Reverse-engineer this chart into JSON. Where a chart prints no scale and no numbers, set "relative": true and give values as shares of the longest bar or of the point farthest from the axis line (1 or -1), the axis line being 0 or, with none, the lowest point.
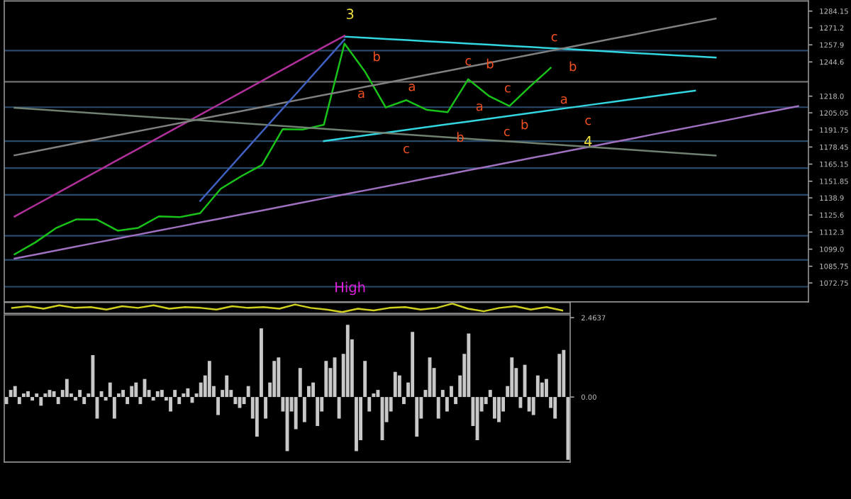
{
  "chart_data": [
    {
      "type": "line",
      "ylim": [
        1058,
        1292
      ],
      "yticks": [
        1284.15,
        1271.2,
        1257.9,
        1244.6,
        {
          "value": 1218,
          "label": "1218.0"
        },
        1205.05,
        1191.75,
        1178.45,
        1165.15,
        1151.85,
        1138.9,
        1125.6,
        1112.3,
        {
          "value": 1099,
          "label": "1099.0"
        },
        1085.75,
        1072.75
      ],
      "tick_labels": "y",
      "categories": [
        null,
        null,
        null,
        null,
        null,
        null,
        null,
        null,
        null,
        null,
        null,
        null,
        null,
        null,
        null,
        null,
        null,
        null,
        null,
        null,
        null,
        null,
        null,
        null,
        null,
        null,
        null,
        null,
        null,
        null,
        null,
        null,
        null,
        null,
        null,
        null,
        null,
        null,
        null
      ],
      "series": [
        {
          "color": "#19c219",
          "values": [
            1095.0,
            1104.2,
            1115.3,
            1122.2,
            1122.0,
            1113.4,
            1115.6,
            1124.5,
            1123.9,
            1127.0,
            1146.0,
            1155.8,
            1164.6,
            1192.3,
            1192.1,
            1195.8,
            1258.9,
            1236.9,
            1209.2,
            1214.9,
            1207.3,
            1205.5,
            1231.1,
            1218.2,
            1210.3,
            1225.6,
            1240.0,
            null,
            null,
            null,
            null,
            null,
            null,
            null,
            null,
            null,
            null,
            null,
            null
          ]
        },
        {
          "type": "line",
          "color": "#33d6e0",
          "values": [
            null,
            null,
            null,
            null,
            null,
            null,
            null,
            null,
            null,
            null,
            null,
            null,
            null,
            null,
            null,
            null,
            1264.3,
            1263.4,
            1262.5,
            1261.6,
            1260.7,
            1259.8,
            1258.9,
            1258.0,
            1257.1,
            1256.2,
            1255.3,
            1254.4,
            1253.5,
            1252.6,
            1251.6,
            1250.7,
            1249.8,
            1248.9,
            1248.0,
            null,
            null,
            null,
            null
          ]
        },
        {
          "type": "line",
          "color": "#33d6e0",
          "values": [
            null,
            null,
            null,
            null,
            null,
            null,
            null,
            null,
            null,
            null,
            null,
            null,
            null,
            null,
            null,
            1183.1,
            1185.3,
            1187.5,
            1189.6,
            1191.8,
            1194.0,
            1196.2,
            1198.3,
            1200.5,
            1202.7,
            1204.9,
            1207.1,
            1209.2,
            1211.4,
            1213.6,
            1215.8,
            1217.9,
            1220.1,
            1222.3,
            null,
            null,
            null,
            null,
            null
          ]
        },
        {
          "type": "line",
          "color": "#b0309a",
          "values": [
            1124.4,
            1133.2,
            1142.0,
            1150.8,
            1159.6,
            1168.4,
            1177.1,
            1185.9,
            1194.7,
            1203.5,
            1212.3,
            1221.1,
            1229.9,
            1238.7,
            1247.5,
            1256.3,
            1265.0,
            null,
            null,
            null,
            null,
            null,
            null,
            null,
            null,
            null,
            null,
            null,
            null,
            null,
            null,
            null,
            null,
            null,
            null,
            null,
            null,
            null,
            null
          ]
        },
        {
          "type": "line",
          "color": "#a070c0",
          "values": [
            1091.7,
            1094.8,
            1097.9,
            1101.1,
            1104.2,
            1107.3,
            1110.4,
            1113.5,
            1116.6,
            1119.8,
            1122.9,
            1126.0,
            1129.1,
            1132.2,
            1135.4,
            1138.5,
            1141.6,
            1144.7,
            1147.8,
            1150.9,
            1154.1,
            1157.2,
            1160.3,
            1163.4,
            1166.5,
            1169.7,
            1172.8,
            1175.9,
            1179.0,
            1182.1,
            1185.2,
            1188.4,
            1191.5,
            1194.6,
            1197.7,
            1200.8,
            1204.0,
            1207.1,
            1210.2
          ]
        },
        {
          "type": "line",
          "color": "#808080",
          "values": [
            1172.0,
            1175.1,
            1178.3,
            1181.4,
            1184.5,
            1187.6,
            1190.8,
            1193.9,
            1197.0,
            1200.2,
            1203.3,
            1206.4,
            1209.5,
            1212.7,
            1215.8,
            1218.9,
            1222.0,
            1225.2,
            1228.3,
            1231.4,
            1234.6,
            1237.7,
            1240.8,
            1243.9,
            1247.1,
            1250.2,
            1253.3,
            1256.4,
            1259.6,
            1262.7,
            1265.8,
            1269.0,
            1272.1,
            1275.2,
            1278.3,
            null,
            null,
            null,
            null
          ]
        },
        {
          "type": "line",
          "color": "#708070",
          "values": [
            1209.0,
            1207.9,
            1206.8,
            1205.7,
            1204.6,
            1203.5,
            1202.4,
            1201.3,
            1200.3,
            1199.2,
            1198.1,
            1197.0,
            1195.9,
            1194.8,
            1193.7,
            1192.6,
            1191.5,
            1190.4,
            1189.3,
            1188.2,
            1187.1,
            1186.0,
            1184.9,
            1183.8,
            1182.8,
            1181.7,
            1180.6,
            1179.5,
            1178.4,
            1177.3,
            1176.2,
            1175.1,
            1174.0,
            1172.9,
            1171.8,
            null,
            null,
            null,
            null
          ]
        },
        {
          "type": "line",
          "color": "#4060c0",
          "values": [
            null,
            null,
            null,
            null,
            null,
            null,
            null,
            null,
            null,
            1136.5,
            1154.4,
            1172.4,
            1190.3,
            1208.2,
            1226.1,
            1244.1,
            1262.0,
            null,
            null,
            null,
            null,
            null,
            null,
            null,
            null,
            null,
            null,
            null,
            null,
            null,
            null,
            null,
            null,
            null,
            null,
            null,
            null,
            null,
            null
          ]
        }
      ],
      "ref_lines": [
        {
          "axis": "y",
          "value": 1253.4,
          "color": "#2a4a6a"
        },
        {
          "axis": "y",
          "value": 1229.2,
          "color": "#707070"
        },
        {
          "axis": "y",
          "value": 1209.4,
          "color": "#2a4a6a"
        },
        {
          "axis": "y",
          "value": 1183.0,
          "color": "#2a4a6a"
        },
        {
          "axis": "y",
          "value": 1162.1,
          "color": "#2a4a6a"
        },
        {
          "axis": "y",
          "value": 1141.3,
          "color": "#2a4a6a"
        },
        {
          "axis": "y",
          "value": 1109.4,
          "color": "#2a4a6a"
        },
        {
          "axis": "y",
          "value": 1090.7,
          "color": "#2a4a6a"
        },
        {
          "axis": "y",
          "value": 1069.8,
          "color": "#2a4a6a"
        }
      ],
      "annotations": [
        "3",
        "4",
        "High",
        "b",
        "a",
        "a",
        "c",
        "c",
        "b",
        "c",
        "a",
        "c",
        "b",
        "b",
        "c",
        "b",
        "a",
        "c"
      ]
    },
    {
      "type": "line",
      "relative": true,
      "tick_labels": false,
      "categories": [
        null,
        null,
        null,
        null,
        null,
        null,
        null,
        null,
        null,
        null,
        null,
        null,
        null,
        null,
        null,
        null,
        null,
        null,
        null,
        null,
        null,
        null,
        null,
        null,
        null,
        null,
        null,
        null,
        null,
        null,
        null,
        null,
        null,
        null,
        null,
        null
      ],
      "series": [
        {
          "color": "#d0d020",
          "values": [
            0.5,
            0.7,
            0.4,
            0.8,
            0.5,
            0.6,
            0.3,
            0.7,
            0.5,
            0.8,
            0.4,
            0.6,
            0.5,
            0.3,
            0.7,
            0.5,
            0.6,
            0.4,
            0.9,
            0.5,
            0.3,
            0.0,
            0.4,
            0.2,
            0.5,
            0.6,
            0.3,
            0.5,
            1.0,
            0.4,
            0.1,
            0.5,
            0.7,
            0.3,
            0.6,
            0.2
          ]
        }
      ]
    },
    {
      "type": "bar",
      "ylim": [
        -2.02,
        2.55
      ],
      "yticks": [
        2.4637,
        {
          "value": 0,
          "label": "0.00"
        }
      ],
      "tick_labels": "y",
      "categories": [
        null,
        null,
        null,
        null,
        null,
        null,
        null,
        null,
        null,
        null,
        null,
        null,
        null,
        null,
        null,
        null,
        null,
        null,
        null,
        null,
        null,
        null,
        null,
        null,
        null,
        null,
        null,
        null,
        null,
        null,
        null,
        null,
        null,
        null,
        null,
        null,
        null,
        null,
        null,
        null,
        null,
        null,
        null,
        null,
        null,
        null,
        null,
        null,
        null,
        null,
        null,
        null,
        null,
        null,
        null,
        null,
        null,
        null,
        null,
        null,
        null,
        null,
        null,
        null,
        null,
        null,
        null,
        null,
        null,
        null,
        null,
        null,
        null,
        null,
        null,
        null,
        null,
        null,
        null,
        null,
        null,
        null,
        null,
        null,
        null,
        null,
        null,
        null,
        null,
        null,
        null,
        null,
        null,
        null,
        null,
        null,
        null,
        null,
        null,
        null,
        null,
        null,
        null,
        null,
        null,
        null,
        null,
        null,
        null,
        null,
        null,
        null,
        null,
        null,
        null,
        null,
        null,
        null,
        null,
        null,
        null,
        null,
        null,
        null,
        null,
        null,
        null,
        null,
        null,
        null,
        null
      ],
      "series": [
        {
          "color": "#c8c8c8",
          "values": [
            -0.22,
            0.22,
            0.34,
            -0.22,
            0.11,
            0.18,
            -0.11,
            0.11,
            -0.27,
            0.11,
            0.22,
            0.18,
            -0.22,
            0.22,
            0.56,
            0.11,
            -0.11,
            0.22,
            -0.22,
            0.11,
            1.3,
            -0.67,
            0.18,
            -0.11,
            0.45,
            -0.67,
            0.11,
            0.22,
            -0.22,
            0.34,
            0.45,
            -0.22,
            0.56,
            0.22,
            -0.11,
            0.18,
            0.22,
            -0.11,
            -0.45,
            0.22,
            -0.22,
            0.11,
            0.27,
            -0.18,
            0.11,
            0.45,
            0.67,
            1.12,
            0.34,
            -0.56,
            0.22,
            0.67,
            0.22,
            -0.22,
            -0.34,
            -0.22,
            0.34,
            -0.67,
            -1.23,
            2.13,
            -0.67,
            0.45,
            1.12,
            1.23,
            -0.45,
            -1.68,
            -0.45,
            -1.0,
            0.9,
            -0.78,
            0.34,
            0.45,
            -0.9,
            -0.45,
            1.12,
            0.9,
            1.23,
            -0.67,
            1.34,
            2.24,
            1.79,
            -1.68,
            -1.34,
            1.12,
            -0.45,
            0.11,
            0.22,
            -1.34,
            -0.78,
            -0.45,
            0.78,
            0.67,
            -0.22,
            0.45,
            2.02,
            -1.23,
            -0.67,
            0.22,
            1.23,
            0.9,
            -0.67,
            0.22,
            -0.45,
            0.34,
            -0.22,
            0.67,
            1.34,
            1.97,
            -0.9,
            -1.34,
            -0.45,
            -0.22,
            0.22,
            -0.67,
            -0.78,
            -0.45,
            0.34,
            1.23,
            0.9,
            -0.34,
            1.0,
            -0.45,
            -0.56,
            0.67,
            0.45,
            0.56,
            -0.34,
            -0.67,
            1.34,
            1.46,
            -1.95
          ]
        }
      ]
    }
  ]
}
